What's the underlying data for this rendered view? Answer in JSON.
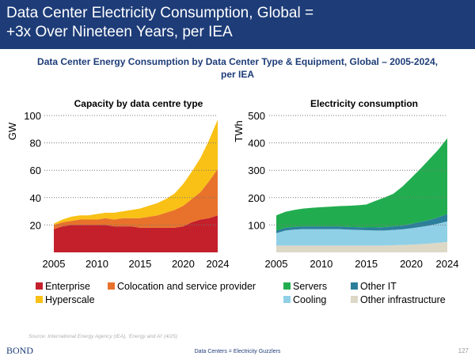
{
  "header": {
    "title_lines": [
      "Data Center Electricity Consumption, Global =",
      "+3x Over Nineteen Years, per IEA"
    ]
  },
  "subtitle_lines": [
    "Data Center Energy Consumption by Data Center Type & Equipment, Global – 2005-2024,",
    "per IEA"
  ],
  "source": "Source: International Energy Agency (IEA), 'Energy and AI' (4/25)",
  "footer": {
    "brand": "BOND",
    "caption": "Data Centers = Electricity Guzzlers",
    "page": "127"
  },
  "chart_data": [
    {
      "type": "stacked-area",
      "title": "Capacity by data centre type",
      "y_label": "GW",
      "x": [
        2005,
        2006,
        2007,
        2008,
        2009,
        2010,
        2011,
        2012,
        2013,
        2014,
        2015,
        2016,
        2017,
        2018,
        2019,
        2020,
        2021,
        2022,
        2023,
        2024
      ],
      "xlim": [
        2005,
        2024
      ],
      "xticks": [
        2005,
        2010,
        2015,
        2020,
        2024
      ],
      "ylim": [
        0,
        100
      ],
      "yticks": [
        20,
        40,
        60,
        80,
        100
      ],
      "grid": true,
      "series": [
        {
          "name": "Enterprise",
          "color": "#c3202b",
          "values": [
            17,
            19,
            20,
            20,
            20,
            20,
            20,
            19,
            19,
            19,
            18,
            18,
            18,
            18,
            18,
            19,
            22,
            24,
            25,
            27
          ]
        },
        {
          "name": "Colocation and service provider",
          "color": "#e8722b",
          "values": [
            3,
            3,
            3,
            4,
            4,
            4,
            5,
            5,
            6,
            6,
            7,
            8,
            9,
            11,
            13,
            15,
            17,
            20,
            27,
            34
          ]
        },
        {
          "name": "Hyperscale",
          "color": "#f9c116",
          "values": [
            1,
            2,
            3,
            3,
            3,
            4,
            4,
            5,
            5,
            6,
            7,
            8,
            9,
            10,
            12,
            16,
            20,
            25,
            30,
            36
          ]
        }
      ]
    },
    {
      "type": "stacked-area",
      "title": "Electricity consumption",
      "y_label": "TWh",
      "x": [
        2005,
        2006,
        2007,
        2008,
        2009,
        2010,
        2011,
        2012,
        2013,
        2014,
        2015,
        2016,
        2017,
        2018,
        2019,
        2020,
        2021,
        2022,
        2023,
        2024
      ],
      "xlim": [
        2005,
        2024
      ],
      "xticks": [
        2005,
        2010,
        2015,
        2020,
        2024
      ],
      "ylim": [
        0,
        500
      ],
      "yticks": [
        100,
        200,
        300,
        400,
        500
      ],
      "grid": true,
      "series": [
        {
          "name": "Other infrastructure",
          "color": "#ddd8c6",
          "values": [
            25,
            25,
            25,
            25,
            25,
            25,
            25,
            25,
            25,
            25,
            25,
            25,
            25,
            26,
            27,
            28,
            30,
            32,
            35,
            38
          ]
        },
        {
          "name": "Cooling",
          "color": "#8fd0e6",
          "values": [
            45,
            55,
            58,
            60,
            60,
            60,
            60,
            60,
            58,
            57,
            56,
            55,
            55,
            56,
            57,
            60,
            63,
            66,
            70,
            75
          ]
        },
        {
          "name": "Other IT",
          "color": "#2b7f9b",
          "values": [
            10,
            10,
            10,
            10,
            10,
            10,
            10,
            10,
            10,
            10,
            10,
            11,
            12,
            13,
            14,
            16,
            18,
            20,
            23,
            27
          ]
        },
        {
          "name": "Servers",
          "color": "#21ad4f",
          "values": [
            55,
            58,
            62,
            65,
            68,
            70,
            72,
            74,
            77,
            80,
            84,
            97,
            108,
            119,
            142,
            168,
            194,
            222,
            247,
            277
          ]
        }
      ]
    }
  ]
}
